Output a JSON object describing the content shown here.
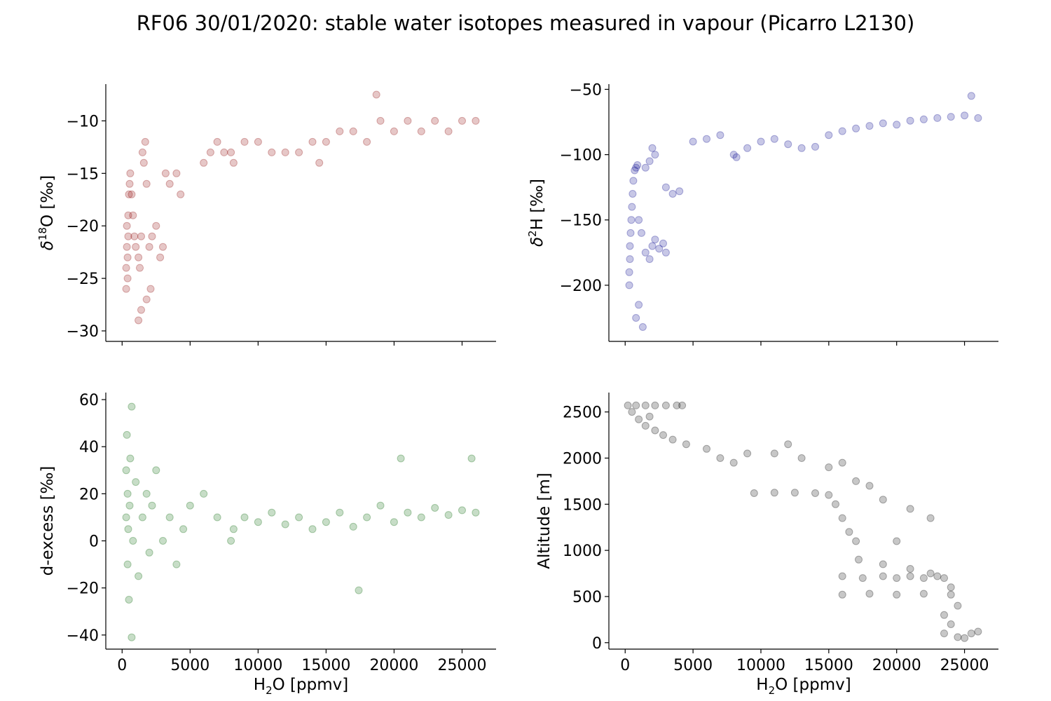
{
  "title": "RF06 30/01/2020: stable water isotopes measured in vapour (Picarro L2130)",
  "chart_data": [
    {
      "type": "scatter",
      "panel": "top-left",
      "color": "#8b0000",
      "ylabel": {
        "main": "δ",
        "sup": "18",
        "rest": "O [‰]"
      },
      "xlabel": null,
      "xlim": [
        -1200,
        27500
      ],
      "ylim": [
        -31,
        -6.5
      ],
      "xticks": [
        0,
        5000,
        10000,
        15000,
        20000,
        25000
      ],
      "xtick_labels_visible": false,
      "yticks": [
        -30,
        -25,
        -20,
        -15,
        -10
      ],
      "ytick_labels": [
        "−30",
        "−25",
        "−20",
        "−15",
        "−10"
      ],
      "series": [
        {
          "name": "δ18O",
          "points": [
            [
              300,
              -26
            ],
            [
              300,
              -24
            ],
            [
              350,
              -22
            ],
            [
              350,
              -20
            ],
            [
              400,
              -25
            ],
            [
              400,
              -23
            ],
            [
              450,
              -21
            ],
            [
              450,
              -19
            ],
            [
              500,
              -17
            ],
            [
              550,
              -16
            ],
            [
              600,
              -15
            ],
            [
              700,
              -17
            ],
            [
              800,
              -19
            ],
            [
              900,
              -21
            ],
            [
              1000,
              -22
            ],
            [
              1200,
              -23
            ],
            [
              1300,
              -24
            ],
            [
              1400,
              -21
            ],
            [
              1500,
              -13
            ],
            [
              1600,
              -14
            ],
            [
              1700,
              -12
            ],
            [
              1800,
              -16
            ],
            [
              2000,
              -22
            ],
            [
              2200,
              -21
            ],
            [
              2500,
              -20
            ],
            [
              2800,
              -23
            ],
            [
              3000,
              -22
            ],
            [
              3200,
              -15
            ],
            [
              3500,
              -16
            ],
            [
              4000,
              -15
            ],
            [
              4300,
              -17
            ],
            [
              1200,
              -29
            ],
            [
              1400,
              -28
            ],
            [
              1800,
              -27
            ],
            [
              2100,
              -26
            ],
            [
              6000,
              -14
            ],
            [
              6500,
              -13
            ],
            [
              7000,
              -12
            ],
            [
              7500,
              -13
            ],
            [
              8000,
              -13
            ],
            [
              8200,
              -14
            ],
            [
              9000,
              -12
            ],
            [
              10000,
              -12
            ],
            [
              11000,
              -13
            ],
            [
              12000,
              -13
            ],
            [
              13000,
              -13
            ],
            [
              14000,
              -12
            ],
            [
              14500,
              -14
            ],
            [
              15000,
              -12
            ],
            [
              16000,
              -11
            ],
            [
              17000,
              -11
            ],
            [
              18000,
              -12
            ],
            [
              19000,
              -10
            ],
            [
              20000,
              -11
            ],
            [
              21000,
              -10
            ],
            [
              22000,
              -11
            ],
            [
              23000,
              -10
            ],
            [
              24000,
              -11
            ],
            [
              25000,
              -10
            ],
            [
              26000,
              -10
            ],
            [
              18700,
              -7.5
            ]
          ]
        }
      ]
    },
    {
      "type": "scatter",
      "panel": "top-right",
      "color": "#00008b",
      "ylabel": {
        "main": "δ",
        "sup": "2",
        "rest": "H [‰]"
      },
      "xlabel": null,
      "xlim": [
        -1200,
        27500
      ],
      "ylim": [
        -243,
        -46
      ],
      "xticks": [
        0,
        5000,
        10000,
        15000,
        20000,
        25000
      ],
      "xtick_labels_visible": false,
      "yticks": [
        -200,
        -150,
        -100,
        -50
      ],
      "ytick_labels": [
        "−200",
        "−150",
        "−100",
        "−50"
      ],
      "series": [
        {
          "name": "δ2H",
          "points": [
            [
              300,
              -200
            ],
            [
              300,
              -190
            ],
            [
              350,
              -180
            ],
            [
              350,
              -170
            ],
            [
              400,
              -160
            ],
            [
              450,
              -150
            ],
            [
              500,
              -140
            ],
            [
              550,
              -130
            ],
            [
              600,
              -120
            ],
            [
              700,
              -112
            ],
            [
              800,
              -110
            ],
            [
              900,
              -108
            ],
            [
              1000,
              -150
            ],
            [
              1200,
              -160
            ],
            [
              1500,
              -175
            ],
            [
              1800,
              -180
            ],
            [
              2000,
              -170
            ],
            [
              2200,
              -165
            ],
            [
              2500,
              -172
            ],
            [
              2800,
              -168
            ],
            [
              3000,
              -175
            ],
            [
              1500,
              -110
            ],
            [
              1800,
              -105
            ],
            [
              2000,
              -95
            ],
            [
              2200,
              -100
            ],
            [
              3000,
              -125
            ],
            [
              3500,
              -130
            ],
            [
              4000,
              -128
            ],
            [
              1000,
              -215
            ],
            [
              800,
              -225
            ],
            [
              1300,
              -232
            ],
            [
              5000,
              -90
            ],
            [
              6000,
              -88
            ],
            [
              7000,
              -85
            ],
            [
              8000,
              -100
            ],
            [
              8200,
              -102
            ],
            [
              9000,
              -95
            ],
            [
              10000,
              -90
            ],
            [
              11000,
              -88
            ],
            [
              12000,
              -92
            ],
            [
              13000,
              -95
            ],
            [
              14000,
              -94
            ],
            [
              15000,
              -85
            ],
            [
              16000,
              -82
            ],
            [
              17000,
              -80
            ],
            [
              18000,
              -78
            ],
            [
              19000,
              -76
            ],
            [
              20000,
              -77
            ],
            [
              21000,
              -74
            ],
            [
              22000,
              -73
            ],
            [
              23000,
              -72
            ],
            [
              24000,
              -71
            ],
            [
              25000,
              -70
            ],
            [
              25500,
              -55
            ],
            [
              26000,
              -72
            ]
          ]
        }
      ]
    },
    {
      "type": "scatter",
      "panel": "bottom-left",
      "color": "#006400",
      "ylabel": {
        "main": "d-excess [‰]",
        "sup": "",
        "rest": ""
      },
      "xlabel": {
        "pre": "H",
        "sub": "2",
        "rest": "O [ppmv]"
      },
      "xlim": [
        -1200,
        27500
      ],
      "ylim": [
        -46,
        63
      ],
      "xticks": [
        0,
        5000,
        10000,
        15000,
        20000,
        25000
      ],
      "xtick_labels": [
        "0",
        "5000",
        "10000",
        "15000",
        "20000",
        "25000"
      ],
      "yticks": [
        -40,
        -20,
        0,
        20,
        40,
        60
      ],
      "ytick_labels": [
        "−40",
        "−20",
        "0",
        "20",
        "40",
        "60"
      ],
      "series": [
        {
          "name": "d-excess",
          "points": [
            [
              300,
              10
            ],
            [
              300,
              30
            ],
            [
              350,
              45
            ],
            [
              400,
              -10
            ],
            [
              400,
              20
            ],
            [
              450,
              5
            ],
            [
              500,
              -25
            ],
            [
              550,
              15
            ],
            [
              600,
              35
            ],
            [
              700,
              57
            ],
            [
              700,
              -41
            ],
            [
              800,
              0
            ],
            [
              1000,
              25
            ],
            [
              1200,
              -15
            ],
            [
              1500,
              10
            ],
            [
              1800,
              20
            ],
            [
              2000,
              -5
            ],
            [
              2200,
              15
            ],
            [
              2500,
              30
            ],
            [
              3000,
              0
            ],
            [
              3500,
              10
            ],
            [
              4000,
              -10
            ],
            [
              4500,
              5
            ],
            [
              5000,
              15
            ],
            [
              6000,
              20
            ],
            [
              7000,
              10
            ],
            [
              8000,
              0
            ],
            [
              8200,
              5
            ],
            [
              9000,
              10
            ],
            [
              10000,
              8
            ],
            [
              11000,
              12
            ],
            [
              12000,
              7
            ],
            [
              13000,
              10
            ],
            [
              14000,
              5
            ],
            [
              15000,
              8
            ],
            [
              16000,
              12
            ],
            [
              17000,
              6
            ],
            [
              17400,
              -21
            ],
            [
              18000,
              10
            ],
            [
              19000,
              15
            ],
            [
              20000,
              8
            ],
            [
              20500,
              35
            ],
            [
              21000,
              12
            ],
            [
              22000,
              10
            ],
            [
              23000,
              14
            ],
            [
              24000,
              11
            ],
            [
              25000,
              13
            ],
            [
              25700,
              35
            ],
            [
              26000,
              12
            ]
          ]
        }
      ]
    },
    {
      "type": "scatter",
      "panel": "bottom-right",
      "color": "#000000",
      "ylabel": {
        "main": "Altitude [m]",
        "sup": "",
        "rest": ""
      },
      "xlabel": {
        "pre": "H",
        "sub": "2",
        "rest": "O [ppmv]"
      },
      "xlim": [
        -1200,
        27500
      ],
      "ylim": [
        -70,
        2710
      ],
      "xticks": [
        0,
        5000,
        10000,
        15000,
        20000,
        25000
      ],
      "xtick_labels": [
        "0",
        "5000",
        "10000",
        "15000",
        "20000",
        "25000"
      ],
      "yticks": [
        0,
        500,
        1000,
        1500,
        2000,
        2500
      ],
      "ytick_labels": [
        "0",
        "500",
        "1000",
        "1500",
        "2000",
        "2500"
      ],
      "series": [
        {
          "name": "altitude",
          "points": [
            [
              200,
              2570
            ],
            [
              800,
              2570
            ],
            [
              1500,
              2570
            ],
            [
              2200,
              2570
            ],
            [
              3000,
              2570
            ],
            [
              3800,
              2570
            ],
            [
              4200,
              2570
            ],
            [
              500,
              2500
            ],
            [
              1000,
              2420
            ],
            [
              1500,
              2350
            ],
            [
              1800,
              2450
            ],
            [
              2200,
              2300
            ],
            [
              2800,
              2250
            ],
            [
              3500,
              2200
            ],
            [
              4500,
              2150
            ],
            [
              6000,
              2100
            ],
            [
              7000,
              2000
            ],
            [
              8000,
              1950
            ],
            [
              9500,
              1620
            ],
            [
              11000,
              1625
            ],
            [
              12500,
              1625
            ],
            [
              14000,
              1620
            ],
            [
              15000,
              1600
            ],
            [
              15500,
              1500
            ],
            [
              16000,
              1350
            ],
            [
              16500,
              1200
            ],
            [
              17000,
              1100
            ],
            [
              17200,
              900
            ],
            [
              16000,
              720
            ],
            [
              17500,
              700
            ],
            [
              19000,
              720
            ],
            [
              20000,
              700
            ],
            [
              21000,
              720
            ],
            [
              22000,
              700
            ],
            [
              23000,
              720
            ],
            [
              23500,
              700
            ],
            [
              24000,
              600
            ],
            [
              16000,
              520
            ],
            [
              18000,
              530
            ],
            [
              20000,
              520
            ],
            [
              22000,
              530
            ],
            [
              24000,
              520
            ],
            [
              24500,
              400
            ],
            [
              23500,
              300
            ],
            [
              24000,
              200
            ],
            [
              23500,
              100
            ],
            [
              24500,
              60
            ],
            [
              25000,
              50
            ],
            [
              25500,
              100
            ],
            [
              26000,
              120
            ],
            [
              9000,
              2050
            ],
            [
              11000,
              2050
            ],
            [
              13000,
              2000
            ],
            [
              15000,
              1900
            ],
            [
              17000,
              1750
            ],
            [
              19000,
              1550
            ],
            [
              21000,
              1450
            ],
            [
              22500,
              1350
            ],
            [
              20000,
              1100
            ],
            [
              19000,
              850
            ],
            [
              21000,
              800
            ],
            [
              22500,
              750
            ],
            [
              12000,
              2150
            ],
            [
              16000,
              1950
            ],
            [
              18000,
              1700
            ]
          ]
        }
      ]
    }
  ]
}
